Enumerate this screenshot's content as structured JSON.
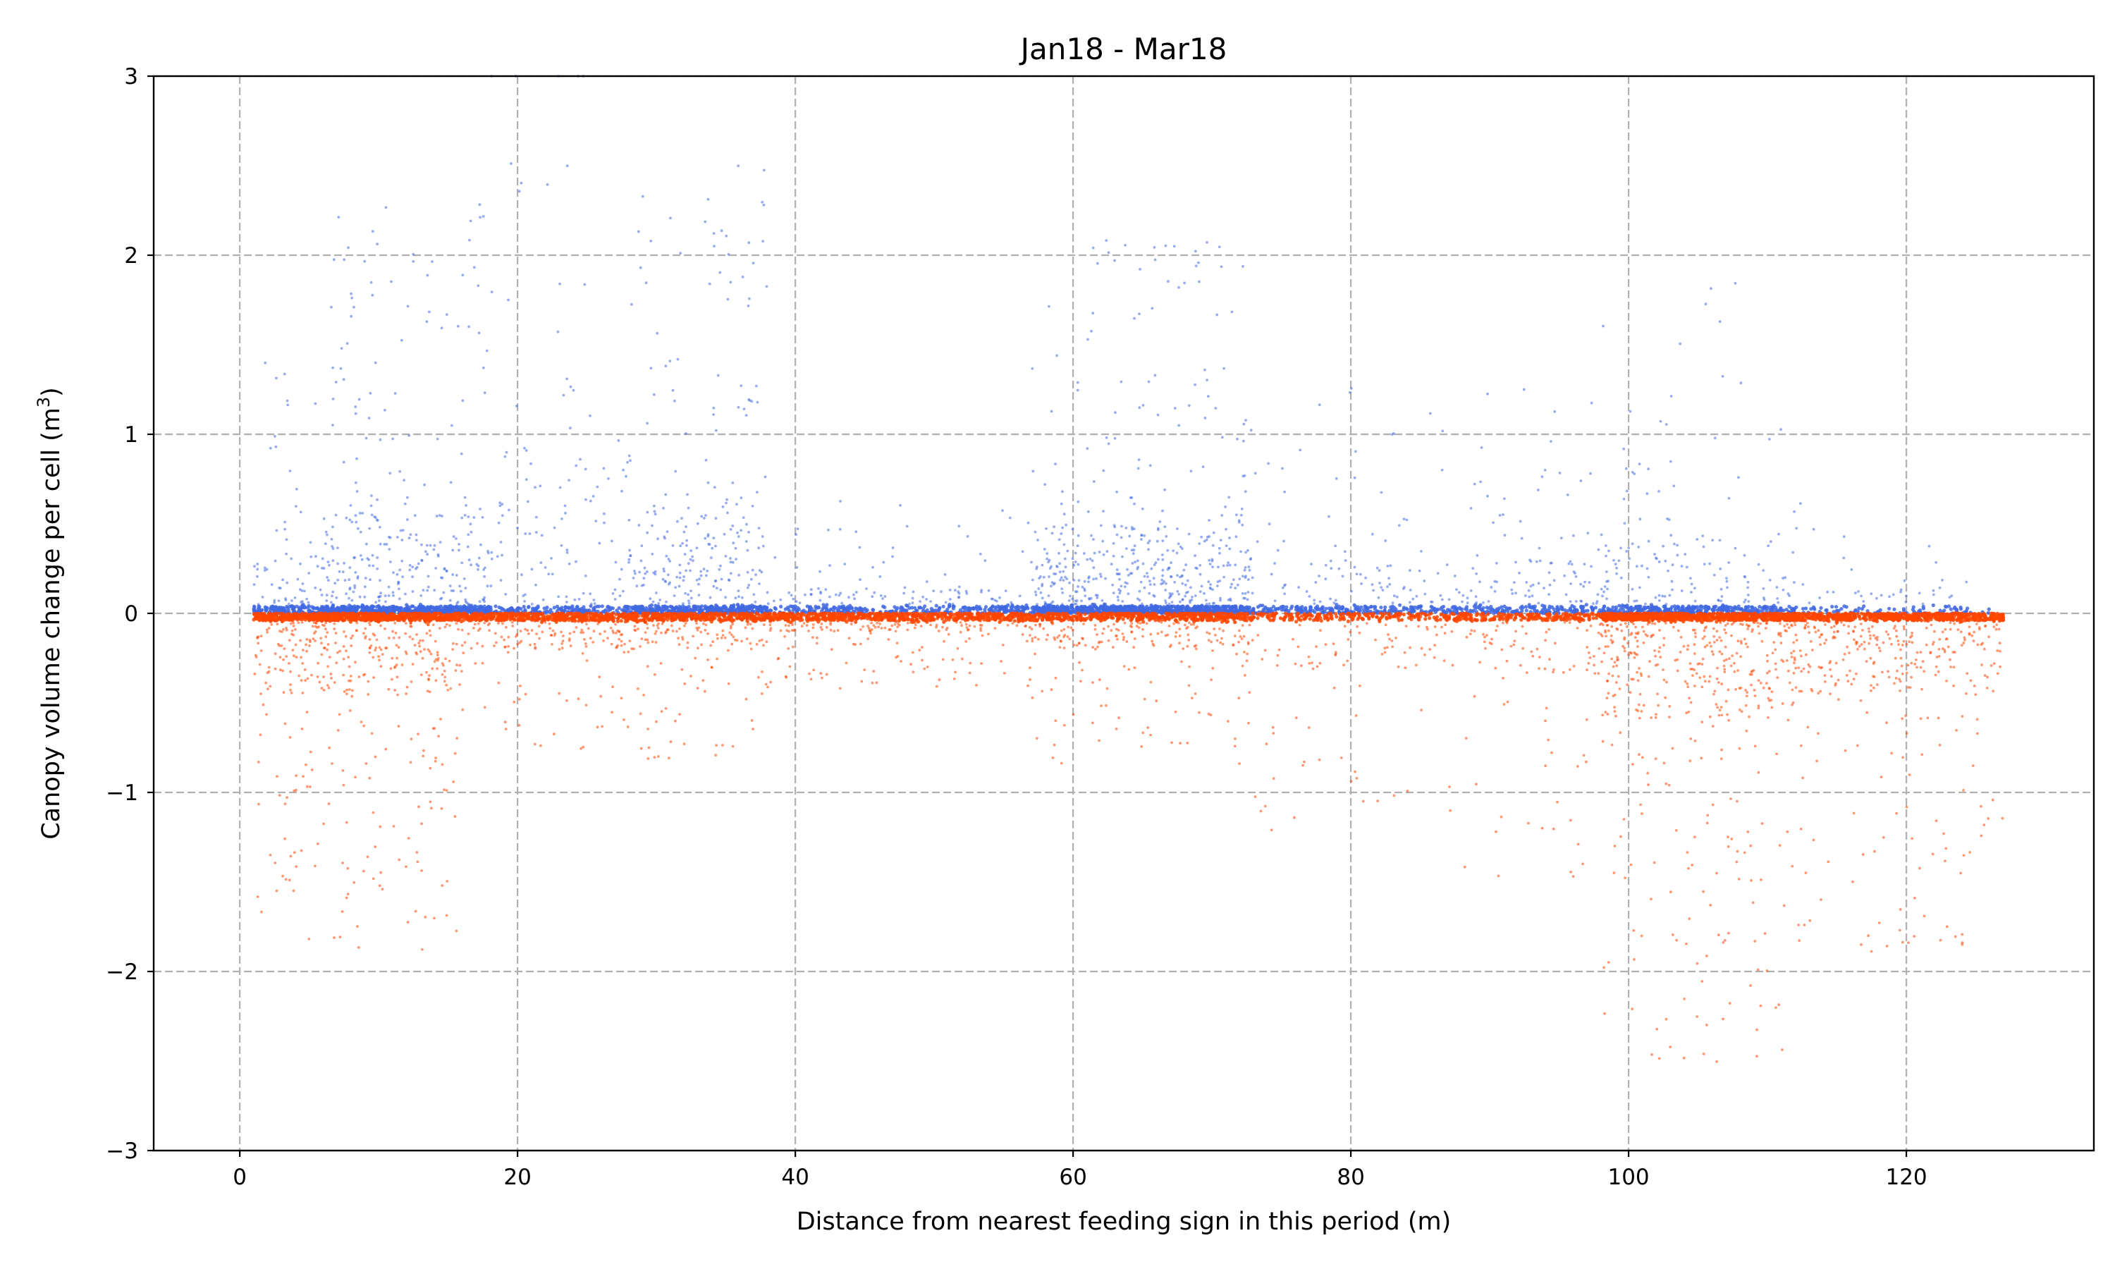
{
  "chart_data": {
    "type": "scatter",
    "title": "Jan18 - Mar18",
    "xlabel": "Distance from nearest feeding sign in this period (m)",
    "ylabel": "Canopy volume change per cell (m",
    "ylabel_sup": "3",
    "ylabel_close": ")",
    "xlim": [
      -6.2,
      133.5
    ],
    "ylim": [
      -3,
      3
    ],
    "x_ticks": [
      0,
      20,
      40,
      60,
      80,
      100,
      120
    ],
    "x_tick_labels": [
      "0",
      "20",
      "40",
      "60",
      "80",
      "100",
      "120"
    ],
    "y_ticks": [
      -3,
      -2,
      -1,
      0,
      1,
      2,
      3
    ],
    "y_tick_labels": [
      "−3",
      "−2",
      "−1",
      "0",
      "1",
      "2",
      "3"
    ],
    "grid": true,
    "grid_style": "dashed",
    "series": [
      {
        "color": "#4169e1",
        "sign": "positive",
        "x_range": [
          1,
          126
        ],
        "density_profile": [
          {
            "x": [
              1,
              6
            ],
            "weight": 0.6,
            "spread": 0.35
          },
          {
            "x": [
              6,
              18
            ],
            "weight": 1.0,
            "spread": 0.55
          },
          {
            "x": [
              18,
              28
            ],
            "weight": 0.4,
            "spread": 0.9
          },
          {
            "x": [
              28,
              38
            ],
            "weight": 0.9,
            "spread": 0.6
          },
          {
            "x": [
              38,
              57
            ],
            "weight": 0.3,
            "spread": 0.15
          },
          {
            "x": [
              57,
              73
            ],
            "weight": 1.1,
            "spread": 0.5
          },
          {
            "x": [
              73,
              98
            ],
            "weight": 0.35,
            "spread": 0.3
          },
          {
            "x": [
              98,
              112
            ],
            "weight": 0.5,
            "spread": 0.45
          },
          {
            "x": [
              112,
              126
            ],
            "weight": 0.12,
            "spread": 0.15
          }
        ]
      },
      {
        "color": "#ff4500",
        "sign": "negative",
        "x_range": [
          1,
          127
        ],
        "density_profile": [
          {
            "x": [
              1,
              16
            ],
            "weight": 1.1,
            "spread": 0.45
          },
          {
            "x": [
              16,
              38
            ],
            "weight": 0.7,
            "spread": 0.2
          },
          {
            "x": [
              38,
              57
            ],
            "weight": 0.6,
            "spread": 0.1
          },
          {
            "x": [
              57,
              73
            ],
            "weight": 0.6,
            "spread": 0.2
          },
          {
            "x": [
              73,
              88
            ],
            "weight": 0.3,
            "spread": 0.3
          },
          {
            "x": [
              88,
              98
            ],
            "weight": 0.4,
            "spread": 0.35
          },
          {
            "x": [
              98,
              112
            ],
            "weight": 1.2,
            "spread": 0.6
          },
          {
            "x": [
              112,
              127
            ],
            "weight": 0.9,
            "spread": 0.45
          }
        ]
      }
    ]
  }
}
